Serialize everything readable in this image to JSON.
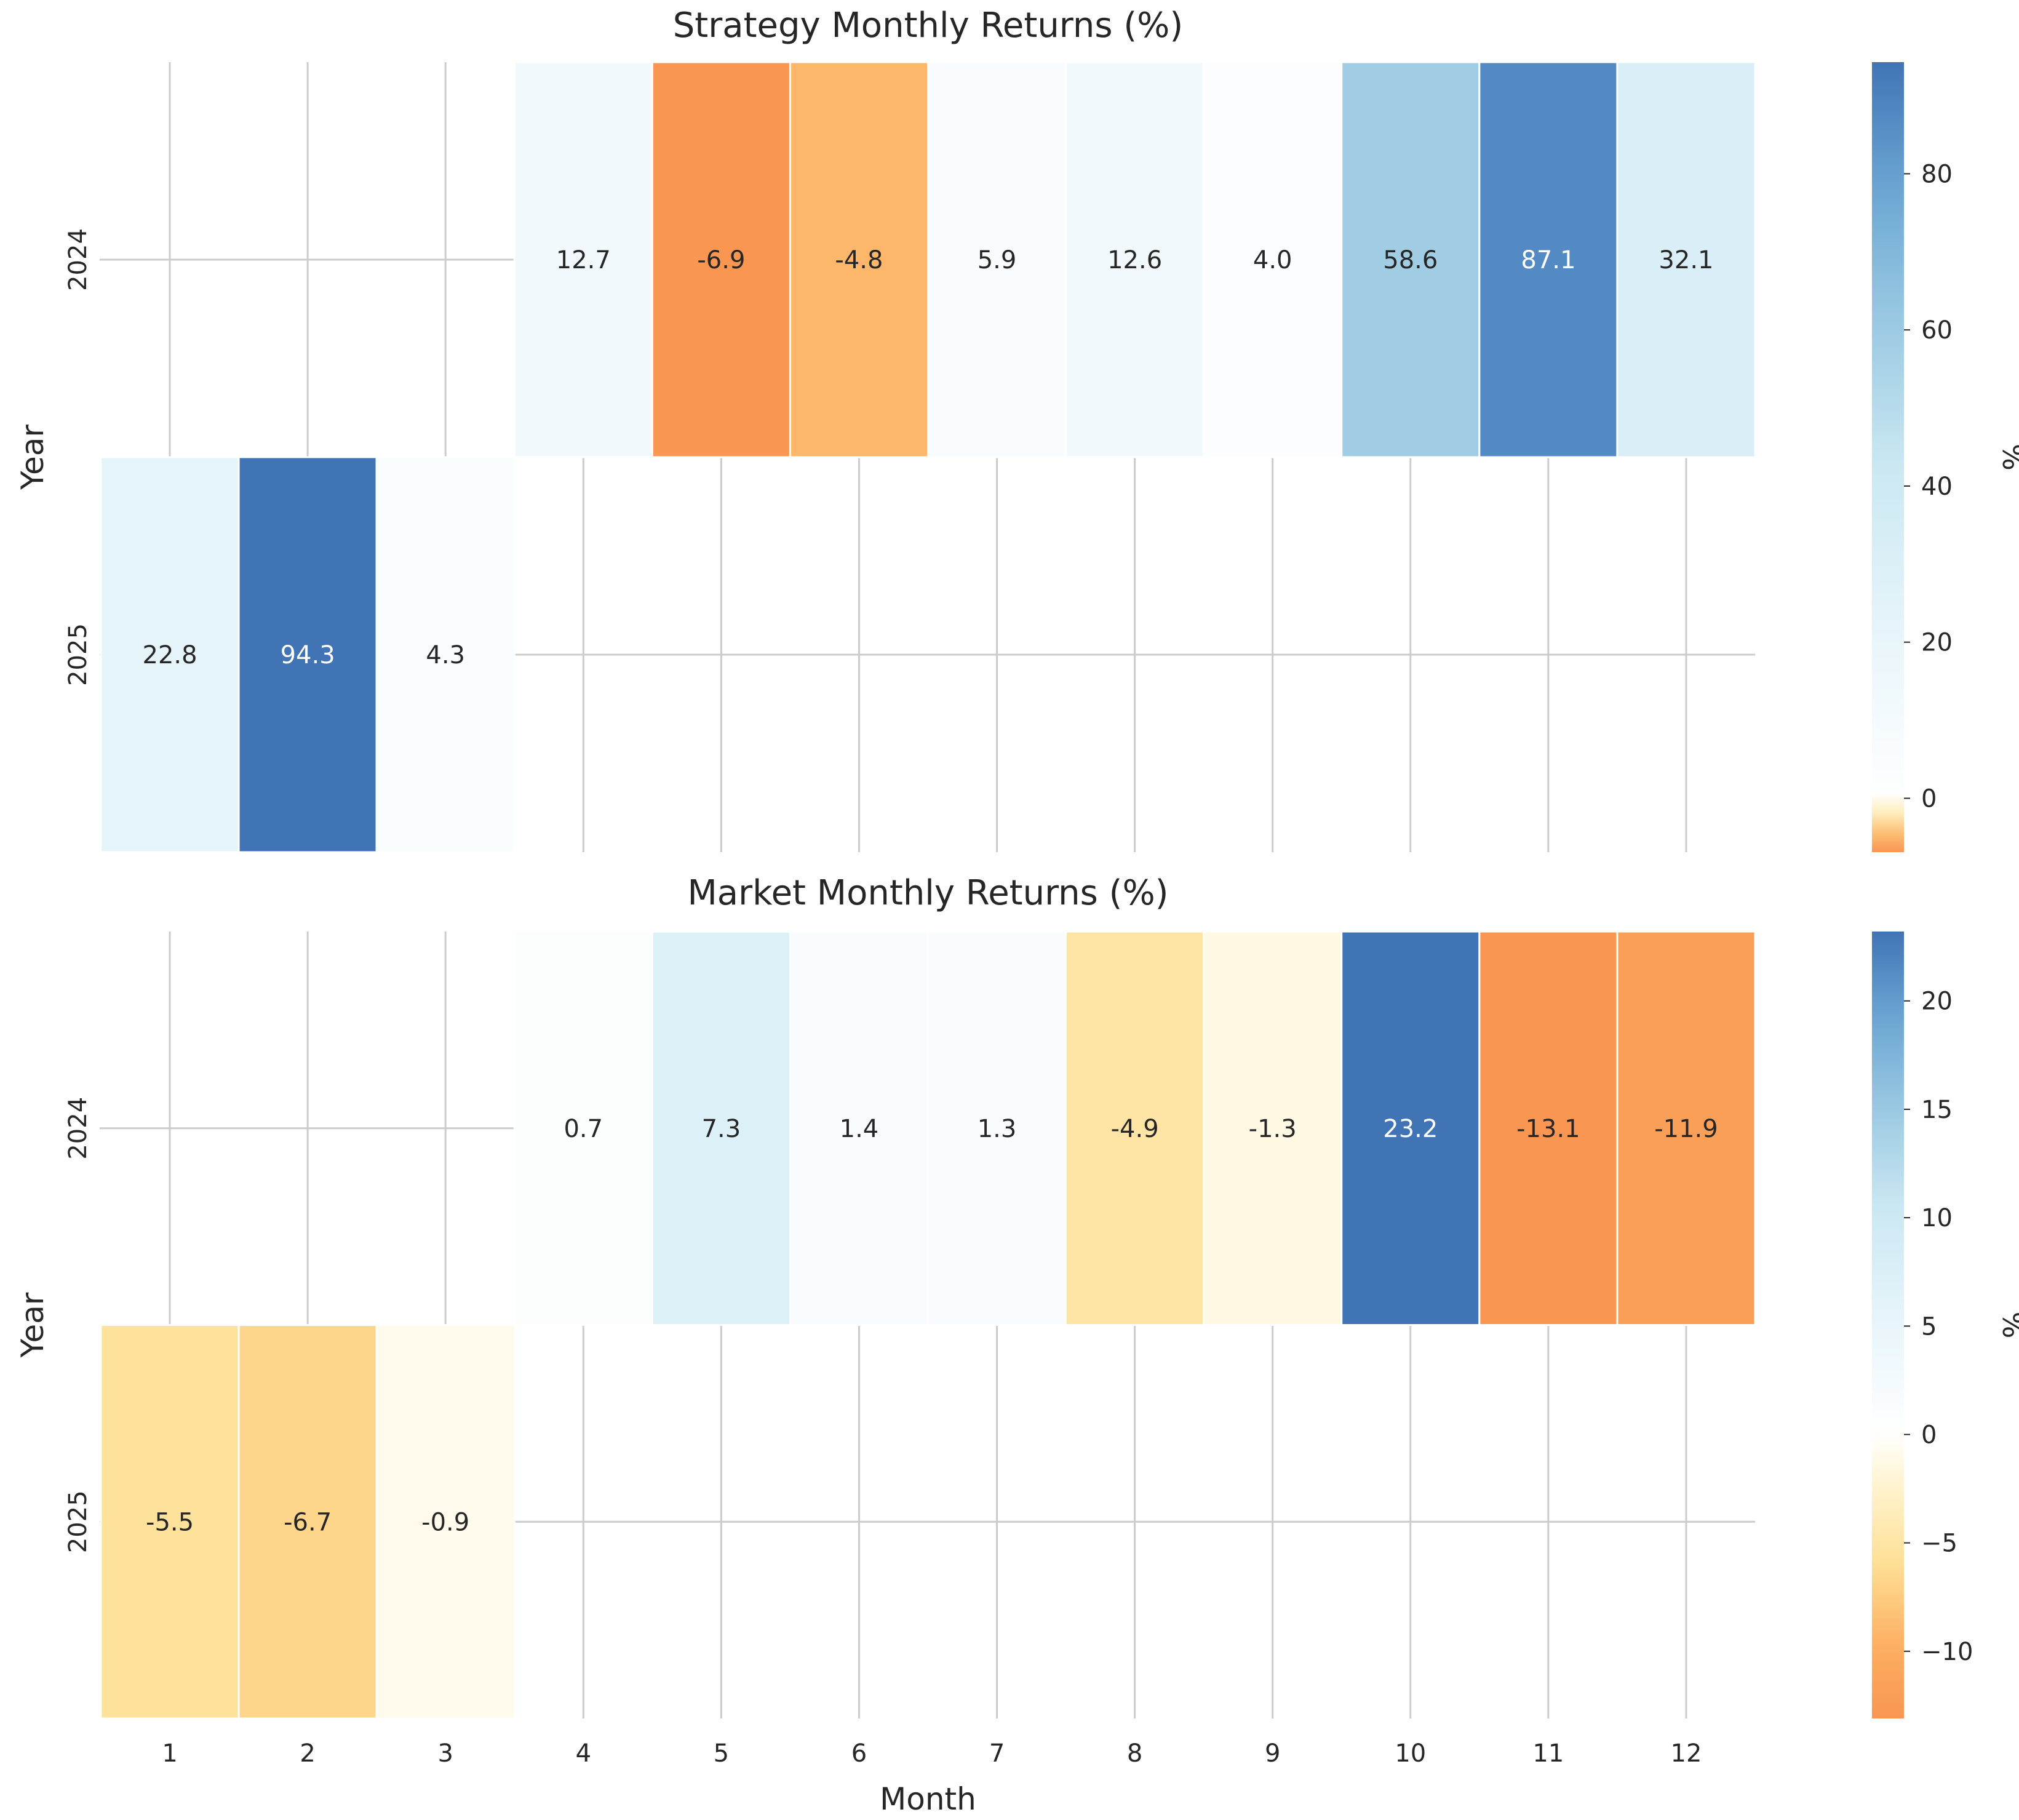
{
  "chart_data": [
    {
      "type": "heatmap",
      "title": "Strategy Monthly Returns (%)",
      "ylabel": "Year",
      "xlabel": "",
      "rows": [
        "2024",
        "2025"
      ],
      "columns": [
        "1",
        "2",
        "3",
        "4",
        "5",
        "6",
        "7",
        "8",
        "9",
        "10",
        "11",
        "12"
      ],
      "values": [
        [
          null,
          null,
          null,
          12.7,
          -6.9,
          -4.8,
          5.9,
          12.6,
          4.0,
          58.6,
          87.1,
          32.1
        ],
        [
          22.8,
          94.3,
          4.3,
          null,
          null,
          null,
          null,
          null,
          null,
          null,
          null,
          null
        ]
      ],
      "colorbar": {
        "label": "%",
        "range": [
          -6.9,
          94.3
        ],
        "ticks": [
          0,
          20,
          40,
          60,
          80
        ],
        "tick_labels": [
          "0",
          "20",
          "40",
          "60",
          "80"
        ]
      },
      "colormap": "diverging orange-white-blue centered at 0",
      "grid": true
    },
    {
      "type": "heatmap",
      "title": "Market Monthly Returns (%)",
      "ylabel": "Year",
      "xlabel": "Month",
      "rows": [
        "2024",
        "2025"
      ],
      "columns": [
        "1",
        "2",
        "3",
        "4",
        "5",
        "6",
        "7",
        "8",
        "9",
        "10",
        "11",
        "12"
      ],
      "values": [
        [
          null,
          null,
          null,
          0.7,
          7.3,
          1.4,
          1.3,
          -4.9,
          -1.3,
          23.2,
          -13.1,
          -11.9
        ],
        [
          -5.5,
          -6.7,
          -0.9,
          null,
          null,
          null,
          null,
          null,
          null,
          null,
          null,
          null
        ]
      ],
      "colorbar": {
        "label": "%",
        "range": [
          -13.1,
          23.2
        ],
        "ticks": [
          -10,
          -5,
          0,
          5,
          10,
          15,
          20
        ],
        "tick_labels": [
          "−10",
          "−5",
          "0",
          "5",
          "10",
          "15",
          "20"
        ]
      },
      "colormap": "diverging orange-white-blue centered at 0",
      "grid": true
    }
  ],
  "colors": {
    "grid": "#cccccc",
    "text_dark": "#262626",
    "text_light": "#ffffff",
    "cell_border": "#ffffff"
  }
}
